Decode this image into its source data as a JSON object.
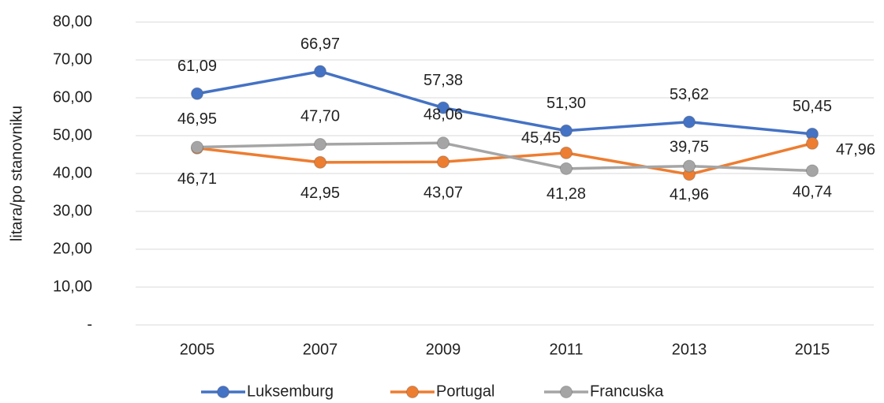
{
  "chart_data": {
    "type": "line",
    "y_label": "litara/po stanovniku",
    "categories": [
      "2005",
      "2007",
      "2009",
      "2011",
      "2013",
      "2015"
    ],
    "series": [
      {
        "name": "Luksemburg",
        "color": "#4472c4",
        "values": [
          61.09,
          66.97,
          57.38,
          51.3,
          53.62,
          50.45
        ],
        "value_labels": [
          "61,09",
          "66,97",
          "57,38",
          "51,30",
          "53,62",
          "50,45"
        ]
      },
      {
        "name": "Portugal",
        "color": "#ed7d31",
        "values": [
          46.71,
          42.95,
          43.07,
          45.45,
          39.75,
          47.96
        ],
        "value_labels": [
          "46,71",
          "42,95",
          "43,07",
          "45,45",
          "39,75",
          "47,96"
        ]
      },
      {
        "name": "Francuska",
        "color": "#a5a5a5",
        "values": [
          46.95,
          47.7,
          48.06,
          41.28,
          41.96,
          40.74
        ],
        "value_labels": [
          "46,95",
          "47,70",
          "48,06",
          "41,28",
          "41,96",
          "40,74"
        ]
      }
    ],
    "ylim": [
      0,
      80
    ],
    "yticks": [
      {
        "value": 0,
        "label": "-"
      },
      {
        "value": 10,
        "label": "10,00"
      },
      {
        "value": 20,
        "label": "20,00"
      },
      {
        "value": 30,
        "label": "30,00"
      },
      {
        "value": 40,
        "label": "40,00"
      },
      {
        "value": 50,
        "label": "50,00"
      },
      {
        "value": 60,
        "label": "60,00"
      },
      {
        "value": 70,
        "label": "70,00"
      },
      {
        "value": 80,
        "label": "80,00"
      }
    ],
    "grid": true,
    "legend": "bottom"
  }
}
